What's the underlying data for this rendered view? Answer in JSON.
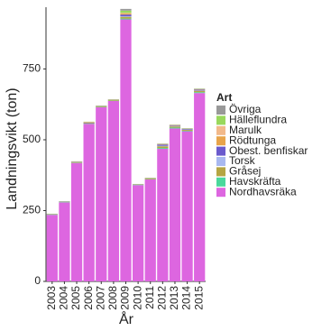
{
  "chart_data": {
    "type": "stacked_bar",
    "x_label": "År",
    "y_label": "Landningsvikt (ton)",
    "legend_title": "Art",
    "categories": [
      "2003",
      "2004",
      "2005",
      "2006",
      "2007",
      "2008",
      "2009",
      "2010",
      "2011",
      "2012",
      "2013",
      "2014",
      "2015"
    ],
    "series": [
      {
        "name": "Övriga",
        "color": "#999999",
        "values": [
          0,
          0,
          0,
          0,
          0,
          0,
          6,
          0,
          0,
          1,
          1,
          1,
          1
        ]
      },
      {
        "name": "Hälleflundra",
        "color": "#99d85c",
        "values": [
          1,
          1,
          1,
          1,
          1,
          1,
          8,
          1,
          1,
          1,
          1,
          1,
          1
        ]
      },
      {
        "name": "Marulk",
        "color": "#f2b98a",
        "values": [
          0,
          0,
          0,
          1,
          0,
          0,
          2,
          0,
          0,
          1,
          1,
          0,
          1
        ]
      },
      {
        "name": "Rödtunga",
        "color": "#e8a44a",
        "values": [
          0,
          0,
          1,
          1,
          1,
          1,
          4,
          0,
          1,
          1,
          1,
          1,
          1
        ]
      },
      {
        "name": "Obest. benfiskar",
        "color": "#6a5acd",
        "values": [
          1,
          1,
          1,
          2,
          1,
          1,
          6,
          1,
          1,
          4,
          2,
          2,
          3
        ]
      },
      {
        "name": "Torsk",
        "color": "#a8b8f0",
        "values": [
          0,
          0,
          0,
          0,
          0,
          0,
          2,
          0,
          0,
          2,
          1,
          1,
          1
        ]
      },
      {
        "name": "Gråsej",
        "color": "#b5a542",
        "values": [
          1,
          1,
          2,
          2,
          2,
          2,
          6,
          1,
          2,
          6,
          4,
          3,
          5
        ]
      },
      {
        "name": "Havskräfta",
        "color": "#4ad89c",
        "values": [
          1,
          1,
          1,
          1,
          1,
          1,
          3,
          1,
          1,
          3,
          3,
          2,
          3
        ]
      },
      {
        "name": "Nordhavsräka",
        "color": "#dd66e0",
        "values": [
          235,
          279,
          418,
          556,
          615,
          637,
          925,
          340,
          360,
          468,
          540,
          530,
          665
        ]
      }
    ],
    "ylim": [
      0,
      968
    ],
    "yticks": [
      0,
      250,
      500,
      750
    ],
    "grid": false,
    "legend_position": "right"
  }
}
